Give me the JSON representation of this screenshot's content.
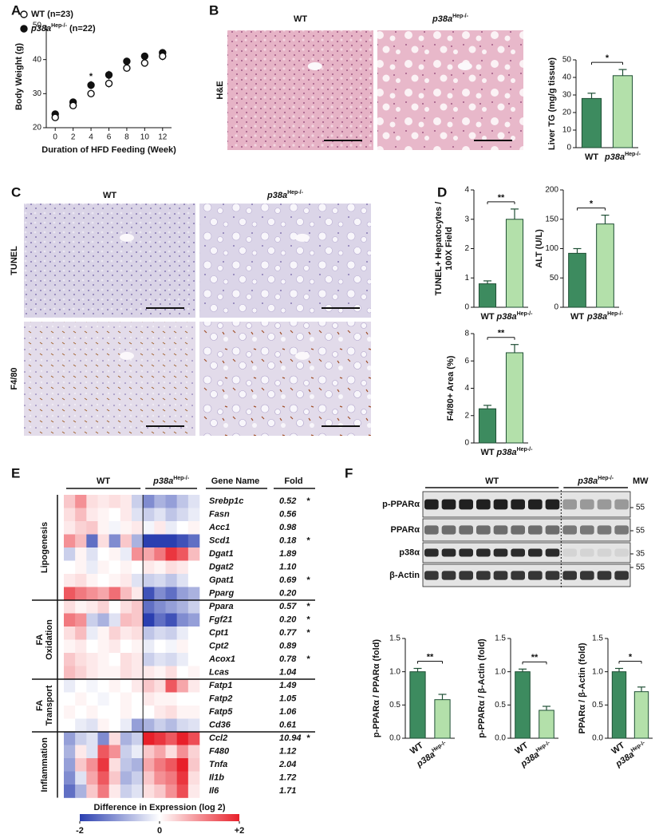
{
  "panel_letters": [
    "A",
    "B",
    "C",
    "D",
    "E",
    "F"
  ],
  "histology": [
    {
      "columns": [
        "WT",
        "p38a"
      ],
      "column_sup": [
        null,
        "Hep-/-"
      ],
      "rows": [
        "H&E"
      ]
    },
    {
      "columns": [
        "WT",
        "p38a"
      ],
      "column_sup": [
        null,
        "Hep-/-"
      ],
      "rows": [
        "TUNEL",
        "F4/80"
      ]
    }
  ],
  "blot": {
    "groups": [
      {
        "label": "WT"
      },
      {
        "label": "p38a",
        "sup": "Hep-/-"
      }
    ],
    "mw_header": "MW",
    "rows": [
      "p-PPARα",
      "PPARα",
      "p38α",
      "β-Actin"
    ],
    "mw": [
      "55",
      "55",
      "35",
      "55"
    ]
  },
  "chart_data": [
    {
      "type": "scatter",
      "ylabel": "Body Weight (g)",
      "xlabel": "Duration of HFD Feeding (Week)",
      "x": [
        0,
        2,
        4,
        6,
        8,
        10,
        12
      ],
      "xlim": [
        -1,
        13
      ],
      "xticks": [
        0,
        2,
        4,
        6,
        8,
        10,
        12
      ],
      "ylim": [
        20,
        50
      ],
      "yticks": [
        20,
        30,
        40,
        50
      ],
      "series": [
        {
          "name": "WT (n=23)",
          "marker": "open",
          "color": "#111111",
          "values": [
            23,
            26.5,
            30,
            33,
            37.5,
            39,
            41
          ],
          "errors": [
            1,
            0.8,
            1,
            1.2,
            1,
            1,
            1.2
          ]
        },
        {
          "name": "p38a",
          "name_sup": "Hep-/-",
          "name_suffix": " (n=22)",
          "marker": "filled",
          "color": "#111111",
          "values": [
            24,
            27.5,
            32.5,
            35.5,
            39.5,
            41,
            42
          ],
          "errors": [
            1,
            0.8,
            1.2,
            1.2,
            1,
            1,
            1
          ]
        }
      ],
      "annotations": [
        {
          "text": "*",
          "x": 4,
          "y": 35
        }
      ]
    },
    {
      "type": "bar",
      "ylabel": [
        "Liver TG (mg/g tissue)"
      ],
      "categories": [
        "WT",
        "p38a"
      ],
      "category_sup": [
        null,
        "Hep-/-"
      ],
      "values": [
        28,
        41
      ],
      "errors": [
        3,
        3.5
      ],
      "colors": [
        "#3d8b5f",
        "#b3e0aa"
      ],
      "ylim": [
        0,
        50
      ],
      "yticks": [
        0,
        10,
        20,
        30,
        40,
        50
      ],
      "annotation": "*"
    },
    {
      "type": "bar",
      "ylabel": [
        "TUNEL+ Hepatocytes /",
        "100X Field"
      ],
      "categories": [
        "WT",
        "p38a"
      ],
      "category_sup": [
        null,
        "Hep-/-"
      ],
      "values": [
        0.8,
        3.0
      ],
      "errors": [
        0.1,
        0.35
      ],
      "colors": [
        "#3d8b5f",
        "#b3e0aa"
      ],
      "ylim": [
        0,
        4
      ],
      "yticks": [
        0,
        1,
        2,
        3,
        4
      ],
      "annotation": "**"
    },
    {
      "type": "bar",
      "ylabel": [
        "ALT (U/L)"
      ],
      "categories": [
        "WT",
        "p38a"
      ],
      "category_sup": [
        null,
        "Hep-/-"
      ],
      "values": [
        92,
        142
      ],
      "errors": [
        8,
        15
      ],
      "colors": [
        "#3d8b5f",
        "#b3e0aa"
      ],
      "ylim": [
        0,
        200
      ],
      "yticks": [
        0,
        50,
        100,
        150,
        200
      ],
      "annotation": "*"
    },
    {
      "type": "bar",
      "ylabel": [
        "F4/80+ Area (%)"
      ],
      "categories": [
        "WT",
        "p38a"
      ],
      "category_sup": [
        null,
        "Hep-/-"
      ],
      "values": [
        2.5,
        6.6
      ],
      "errors": [
        0.25,
        0.6
      ],
      "colors": [
        "#3d8b5f",
        "#b3e0aa"
      ],
      "ylim": [
        0,
        8
      ],
      "yticks": [
        0,
        2,
        4,
        6,
        8
      ],
      "annotation": "**"
    },
    {
      "type": "heatmap",
      "column_groups": [
        {
          "label": "WT"
        },
        {
          "label": "p38a",
          "sup": "Hep-/-"
        }
      ],
      "gene_header": "Gene Name",
      "fold_header": "Fold",
      "colorbar": {
        "title": "Difference in Expression (log 2)",
        "lim": [
          -2,
          2
        ],
        "ticks": [
          -2,
          0,
          {
            "value": 2,
            "label": "+2"
          }
        ]
      },
      "groups": [
        {
          "label": [
            "Lipogenesis"
          ],
          "rows": [
            {
              "gene": "Srebp1c",
              "fold": "0.52",
              "star": "*",
              "color": "#3b56b8",
              "wt": [
                0.5,
                1.0,
                0.3,
                0.2,
                0.3,
                0.2,
                -0.5
              ],
              "ko": [
                -1.2,
                -0.8,
                -1,
                -0.6,
                -0.3
              ]
            },
            {
              "gene": "Fasn",
              "fold": "0.56",
              "color": "#111111",
              "wt": [
                0.3,
                0.6,
                0.2,
                0.1,
                0,
                0.2,
                -0.3
              ],
              "ko": [
                -0.5,
                -0.3,
                -0.6,
                -0.4,
                -0.2
              ]
            },
            {
              "gene": "Acc1",
              "fold": "0.98",
              "color": "#111111",
              "wt": [
                0.2,
                0.4,
                0.5,
                0.1,
                -0.1,
                0.1,
                0.2
              ],
              "ko": [
                -0.1,
                0.2,
                -0.2,
                0,
                0.1
              ]
            },
            {
              "gene": "Scd1",
              "fold": "0.18",
              "star": "*",
              "color": "#3b56b8",
              "wt": [
                1.0,
                0.6,
                -1.5,
                0.3,
                -1.2,
                0.5,
                -0.8
              ],
              "ko": [
                -2,
                -2,
                -2,
                -1.8,
                -1.5
              ]
            },
            {
              "gene": "Dgat1",
              "fold": "1.89",
              "color": "#111111",
              "wt": [
                -0.5,
                0.1,
                -0.3,
                0,
                0.1,
                -0.2,
                1.0
              ],
              "ko": [
                0.8,
                1.2,
                1.8,
                1.5,
                0.6
              ]
            },
            {
              "gene": "Dgat2",
              "fold": "1.10",
              "color": "#111111",
              "wt": [
                0,
                0.1,
                -0.2,
                0.1,
                0,
                0.1,
                0
              ],
              "ko": [
                0.2,
                0.1,
                0.3,
                0.2,
                0
              ]
            },
            {
              "gene": "Gpat1",
              "fold": "0.69",
              "star": "*",
              "color": "#3b56b8",
              "wt": [
                0.2,
                0.3,
                0.1,
                0,
                0.1,
                0.2,
                -0.3
              ],
              "ko": [
                -0.5,
                -0.4,
                -0.6,
                -0.3,
                0
              ]
            },
            {
              "gene": "Pparg",
              "fold": "0.20",
              "color": "#111111",
              "wt": [
                1.5,
                1.2,
                1.0,
                0.8,
                1.3,
                0.6,
                0.2
              ],
              "ko": [
                -1.8,
                -1.2,
                -1.5,
                -1.0,
                -0.8
              ]
            }
          ]
        },
        {
          "label": [
            "FA",
            "Oxidation"
          ],
          "rows": [
            {
              "gene": "Ppara",
              "fold": "0.57",
              "star": "*",
              "color": "#3b56b8",
              "wt": [
                0.3,
                0.1,
                0.2,
                0.4,
                0,
                0.3,
                0.5
              ],
              "ko": [
                -1.5,
                -1.2,
                -1.0,
                -0.8,
                -0.5
              ]
            },
            {
              "gene": "Fgf21",
              "fold": "0.20",
              "star": "*",
              "color": "#3b56b8",
              "wt": [
                1.2,
                1.0,
                -0.5,
                -0.8,
                -0.3,
                0.6,
                0.5
              ],
              "ko": [
                -2,
                -1.5,
                -1.8,
                -1.2,
                -1.0
              ]
            },
            {
              "gene": "Cpt1",
              "fold": "0.77",
              "star": "*",
              "color": "#3b56b8",
              "wt": [
                0.3,
                0.6,
                -0.2,
                0.1,
                0.4,
                0.2,
                0.3
              ],
              "ko": [
                -0.6,
                -0.4,
                -0.5,
                -0.2,
                0
              ]
            },
            {
              "gene": "Cpt2",
              "fold": "0.89",
              "color": "#111111",
              "wt": [
                0.1,
                0.2,
                0,
                0.1,
                0.2,
                0,
                0.1
              ],
              "ko": [
                -0.2,
                0,
                -0.1,
                0.1,
                0
              ]
            },
            {
              "gene": "Acox1",
              "fold": "0.78",
              "star": "*",
              "color": "#3b56b8",
              "wt": [
                0.5,
                0.3,
                0.2,
                0.1,
                0,
                0.3,
                0.2
              ],
              "ko": [
                -0.5,
                -0.3,
                -0.4,
                -0.2,
                0
              ]
            },
            {
              "gene": "Lcas",
              "fold": "1.04",
              "color": "#111111",
              "wt": [
                0.6,
                0.4,
                0.2,
                0.1,
                0.1,
                0.3,
                0.2
              ],
              "ko": [
                0.2,
                0.1,
                0.3,
                0,
                0.1
              ]
            }
          ]
        },
        {
          "label": [
            "FA",
            "Transport"
          ],
          "rows": [
            {
              "gene": "Fatp1",
              "fold": "1.49",
              "color": "#111111",
              "wt": [
                -0.2,
                0,
                -0.1,
                0,
                0.1,
                0,
                0.2
              ],
              "ko": [
                0.5,
                0.3,
                1.5,
                0.8,
                0.2
              ]
            },
            {
              "gene": "Fatp2",
              "fold": "1.05",
              "color": "#111111",
              "wt": [
                0,
                0.1,
                0,
                -0.1,
                0,
                0.1,
                0
              ],
              "ko": [
                0.2,
                0.1,
                0.1,
                0,
                0
              ]
            },
            {
              "gene": "Fatp5",
              "fold": "1.06",
              "color": "#111111",
              "wt": [
                0.1,
                0,
                0.1,
                0,
                0,
                0.1,
                0
              ],
              "ko": [
                0,
                0.2,
                0.3,
                0.1,
                0.1
              ]
            },
            {
              "gene": "Cd36",
              "fold": "0.61",
              "color": "#111111",
              "wt": [
                0,
                -0.2,
                -0.3,
                0.1,
                0,
                -0.2,
                -1.0
              ],
              "ko": [
                -0.8,
                -0.5,
                -0.7,
                -0.4,
                -0.3
              ]
            }
          ]
        },
        {
          "label": [
            "Inflammation"
          ],
          "rows": [
            {
              "gene": "Ccl2",
              "fold": "10.94",
              "star": "*",
              "color": "#e0202a",
              "wt": [
                -1.0,
                -0.5,
                -0.3,
                -1.2,
                0.3,
                -0.8,
                -0.5
              ],
              "ko": [
                2,
                1.8,
                1.5,
                2,
                1.6
              ]
            },
            {
              "gene": "F480",
              "fold": "1.12",
              "color": "#111111",
              "wt": [
                -0.8,
                0.2,
                -0.3,
                1.5,
                1.0,
                -0.5,
                -0.2
              ],
              "ko": [
                0.5,
                0.8,
                0.3,
                1.0,
                0.4
              ]
            },
            {
              "gene": "Tnfa",
              "fold": "2.04",
              "color": "#111111",
              "wt": [
                -1.0,
                0.5,
                1.0,
                1.8,
                0.3,
                -0.6,
                -0.8
              ],
              "ko": [
                0.8,
                1.2,
                1.5,
                2,
                0.5
              ]
            },
            {
              "gene": "Il1b",
              "fold": "1.72",
              "color": "#111111",
              "wt": [
                -1.2,
                -0.3,
                0.8,
                1.5,
                0.5,
                -0.8,
                -0.5
              ],
              "ko": [
                0.5,
                1.0,
                1.2,
                1.8,
                0.3
              ]
            },
            {
              "gene": "Il6",
              "fold": "1.71",
              "color": "#111111",
              "wt": [
                -1.5,
                -0.8,
                0.5,
                1.2,
                0.2,
                -0.5,
                -0.3
              ],
              "ko": [
                0.3,
                0.5,
                1.0,
                1.6,
                0.2
              ]
            }
          ]
        }
      ]
    },
    {
      "type": "bar",
      "ylabel": [
        "p-PPARα / PPARα (fold)"
      ],
      "categories": [
        "WT",
        "p38a"
      ],
      "category_sup": [
        null,
        "Hep-/-"
      ],
      "values": [
        1.0,
        0.58
      ],
      "errors": [
        0.05,
        0.08
      ],
      "colors": [
        "#3d8b5f",
        "#b3e0aa"
      ],
      "ylim": [
        0,
        1.5
      ],
      "yticks": [
        {
          "value": 0,
          "label": "0.0"
        },
        0.5,
        {
          "value": 1,
          "label": "1.0"
        },
        1.5
      ],
      "annotation": "**"
    },
    {
      "type": "bar",
      "ylabel": [
        "p-PPARα / β-Actin (fold)"
      ],
      "categories": [
        "WT",
        "p38a"
      ],
      "category_sup": [
        null,
        "Hep-/-"
      ],
      "values": [
        1.0,
        0.42
      ],
      "errors": [
        0.04,
        0.06
      ],
      "colors": [
        "#3d8b5f",
        "#b3e0aa"
      ],
      "ylim": [
        0,
        1.5
      ],
      "yticks": [
        {
          "value": 0,
          "label": "0.0"
        },
        0.5,
        {
          "value": 1,
          "label": "1.0"
        },
        1.5
      ],
      "annotation": "**"
    },
    {
      "type": "bar",
      "ylabel": [
        "PPARα / β-Actin (fold)"
      ],
      "categories": [
        "WT",
        "p38a"
      ],
      "category_sup": [
        null,
        "Hep-/-"
      ],
      "values": [
        1.0,
        0.7
      ],
      "errors": [
        0.05,
        0.07
      ],
      "colors": [
        "#3d8b5f",
        "#b3e0aa"
      ],
      "ylim": [
        0,
        1.5
      ],
      "yticks": [
        {
          "value": 0,
          "label": "0.0"
        },
        0.5,
        {
          "value": 1,
          "label": "1.0"
        },
        1.5
      ],
      "annotation": "*"
    }
  ]
}
